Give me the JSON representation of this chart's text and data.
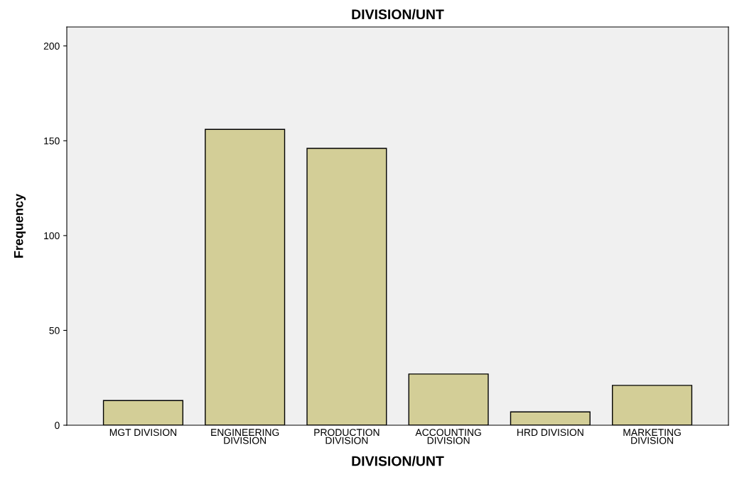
{
  "chart_data": {
    "type": "bar",
    "title": "DIVISION/UNT",
    "xlabel": "DIVISION/UNT",
    "ylabel": "Frequency",
    "categories": [
      "MGT DIVISION",
      "ENGINEERING\nDIVISION",
      "PRODUCTION\nDIVISION",
      "ACCOUNTING\nDIVISION",
      "HRD DIVISION",
      "MARKETING\nDIVISION"
    ],
    "values": [
      13,
      156,
      146,
      27,
      7,
      21
    ],
    "color": "#d3ce97",
    "ylim": [
      0,
      210
    ],
    "yticks": [
      0,
      50,
      100,
      150,
      200
    ],
    "grid": false
  }
}
